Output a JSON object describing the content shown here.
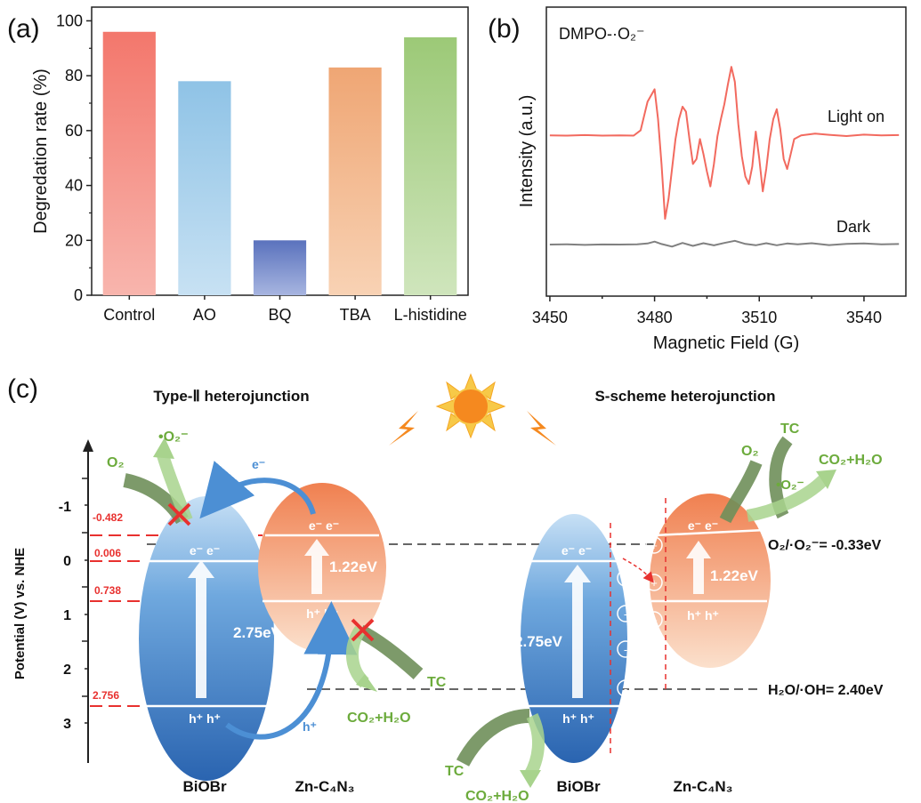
{
  "colors": {
    "axis": "#222222",
    "red": "#e8312f",
    "blue_dark": "#2f6db8",
    "blue_light": "#a9cff0",
    "orange": "#f0905e",
    "orange_light": "#fbd9c0",
    "green": "#8cc06a",
    "green_dark": "#6f8f5a",
    "green_text": "#6cab3c",
    "line_on": "#f26a5f",
    "line_dark": "#808080",
    "sun": "#f5891f",
    "sun_ray": "#f7c948"
  },
  "panels": {
    "a": "(a)",
    "b": "(b)",
    "c": "(c)"
  },
  "chart_data": [
    {
      "type": "bar",
      "categories": [
        "Control",
        "AO",
        "BQ",
        "TBA",
        "L-histidine"
      ],
      "values": [
        96,
        78,
        20,
        83,
        94
      ],
      "bar_colors": [
        "#f3776c",
        "#8fc3e6",
        "#6a7fc4",
        "#efa674",
        "#9cc977"
      ],
      "ylabel": "Degredation rate (%)",
      "xlabel": "",
      "ylim": [
        0,
        105
      ],
      "yticks": [
        0,
        20,
        40,
        60,
        80,
        100
      ],
      "grid": false
    },
    {
      "type": "line",
      "annotation": "DMPO-·O₂⁻",
      "xlabel": "Magnetic Field (G)",
      "ylabel": "Intensity (a.u.)",
      "xlim": [
        3449,
        3552
      ],
      "xticks": [
        3450,
        3480,
        3510,
        3540
      ],
      "series": [
        {
          "name": "Light on",
          "x": [
            3450,
            3455,
            3460,
            3465,
            3470,
            3474,
            3476,
            3478,
            3480,
            3481,
            3482,
            3483,
            3484,
            3485,
            3486,
            3487,
            3488,
            3489,
            3490,
            3491,
            3492,
            3493,
            3494,
            3495,
            3496,
            3497,
            3498,
            3499,
            3500,
            3501,
            3502,
            3503,
            3504,
            3505,
            3506,
            3507,
            3508,
            3509,
            3510,
            3511,
            3512,
            3513,
            3514,
            3515,
            3516,
            3517,
            3518,
            3519,
            3520,
            3522,
            3526,
            3530,
            3535,
            3540,
            3545,
            3550
          ],
          "y": [
            0.35,
            0.34,
            0.36,
            0.34,
            0.35,
            0.34,
            0.55,
            1.7,
            2.2,
            1.0,
            -0.8,
            -3.0,
            -2.2,
            -1.0,
            0.2,
            1.0,
            1.5,
            1.3,
            0.2,
            -0.8,
            -0.6,
            0.2,
            -0.4,
            -1.1,
            -1.7,
            -0.8,
            0.3,
            1.0,
            1.6,
            2.4,
            3.1,
            2.5,
            0.8,
            -0.5,
            -1.3,
            -1.6,
            -0.9,
            0.5,
            -0.6,
            -1.9,
            -1.0,
            0.2,
            1.0,
            1.4,
            0.6,
            -0.6,
            -1.0,
            -0.4,
            0.2,
            0.35,
            0.42,
            0.37,
            0.32,
            0.38,
            0.35,
            0.36
          ]
        },
        {
          "name": "Dark",
          "x": [
            3450,
            3455,
            3460,
            3465,
            3470,
            3475,
            3478,
            3480,
            3482,
            3485,
            3488,
            3491,
            3494,
            3497,
            3500,
            3503,
            3506,
            3509,
            3512,
            3515,
            3518,
            3521,
            3525,
            3530,
            3535,
            3540,
            3545,
            3550
          ],
          "y": [
            0.0,
            0.02,
            -0.03,
            0.01,
            0.0,
            0.02,
            0.08,
            0.22,
            0.04,
            -0.15,
            0.12,
            -0.1,
            0.1,
            -0.06,
            0.12,
            0.28,
            0.05,
            -0.05,
            0.1,
            -0.05,
            0.08,
            0.02,
            0.1,
            -0.04,
            0.05,
            0.08,
            0.02,
            0.04
          ]
        }
      ]
    }
  ],
  "diagram": {
    "y_axis_label": "Potential (V) vs. NHE",
    "y_ticks": [
      "-1",
      "0",
      "1",
      "2",
      "3"
    ],
    "level_values": [
      "-0.482",
      "0.006",
      "0.738",
      "2.756"
    ],
    "left_title": "Type-Ⅱ heterojunction",
    "right_title": "S-scheme heterojunction",
    "o2_level": "O₂/·O₂⁻= -0.33eV",
    "oh_level": "H₂O/·OH= 2.40eV",
    "biobr": "BiOBr",
    "znc4n3": "Zn-C₄N₃",
    "gap_biobr": "2.75eV",
    "gap_zn": "1.22eV",
    "electrons": "e⁻ e⁻",
    "holes": "h⁺ h⁺",
    "e_label": "e⁻",
    "h_label": "h⁺",
    "o2": "O₂",
    "superoxide": "•O₂⁻",
    "tc": "TC",
    "co2_h2o": "CO₂+H₂O",
    "plus": "+",
    "minus": "-"
  }
}
